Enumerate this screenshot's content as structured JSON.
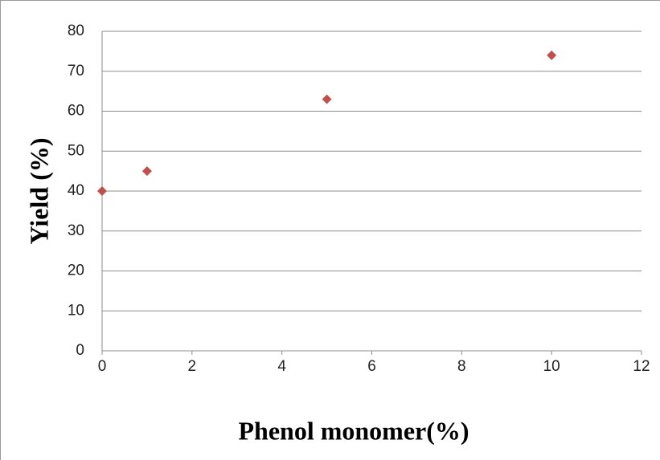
{
  "chart_data": {
    "type": "scatter",
    "x_label": "Phenol monomer(%)",
    "y_label": "Yield (%)",
    "x": [
      0,
      1,
      5,
      10
    ],
    "values": [
      40,
      45,
      63,
      74
    ],
    "color": "#c0504d",
    "xlim": [
      0,
      12
    ],
    "xticks": [
      0,
      2,
      4,
      6,
      8,
      10,
      12
    ],
    "ylim": [
      0,
      80
    ],
    "yticks": [
      0,
      10,
      20,
      30,
      40,
      50,
      60,
      70,
      80
    ],
    "grid": true
  }
}
